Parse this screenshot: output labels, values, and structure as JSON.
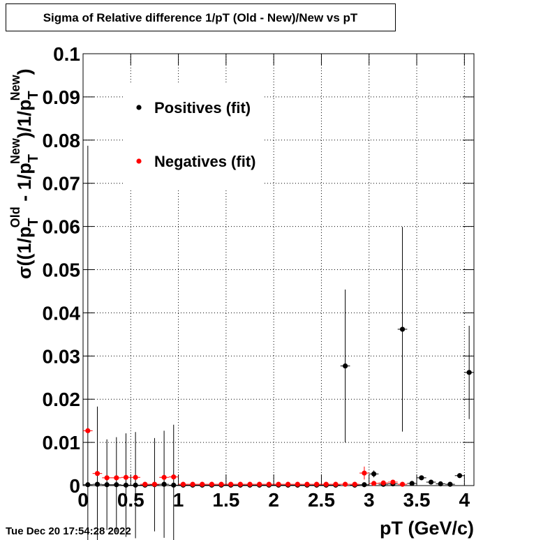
{
  "chart_data": {
    "type": "scatter",
    "title": "Sigma of Relative difference 1/pT (Old - New)/New vs pT",
    "x_label": "pT (GeV/c)",
    "y_label": [
      "σ((1/p",
      "T",
      "Old",
      " - 1/p",
      "T",
      "New",
      ")/1/p",
      "T",
      "New",
      ")"
    ],
    "timestamp": "Tue Dec 20 17:54:28 2022",
    "xlim": [
      0,
      4.1
    ],
    "ylim": [
      0,
      0.1
    ],
    "xticks": [
      0,
      0.5,
      1,
      1.5,
      2,
      2.5,
      3,
      3.5,
      4
    ],
    "yticks": [
      0,
      0.01,
      0.02,
      0.03,
      0.04,
      0.05,
      0.06,
      0.07,
      0.08,
      0.09,
      0.1
    ],
    "grid": true,
    "x": [
      0.05,
      0.15,
      0.25,
      0.35,
      0.45,
      0.55,
      0.65,
      0.75,
      0.85,
      0.95,
      1.05,
      1.15,
      1.25,
      1.35,
      1.45,
      1.55,
      1.65,
      1.75,
      1.85,
      1.95,
      2.05,
      2.15,
      2.25,
      2.35,
      2.45,
      2.55,
      2.65,
      2.75,
      2.85,
      2.95,
      3.05,
      3.15,
      3.25,
      3.35,
      3.45,
      3.55,
      3.65,
      3.75,
      3.85,
      3.95,
      4.05
    ],
    "series": [
      {
        "name": "Positives (fit)",
        "color": "#000000",
        "values": [
          0.0002,
          0.0003,
          0.0002,
          0.0002,
          0.0001,
          0.0001,
          0.0001,
          0.0002,
          0.0003,
          0.0001,
          0.0001,
          0.0001,
          0.0001,
          0.0001,
          0.0001,
          0.0001,
          0.0001,
          0.0001,
          0.0001,
          0.0001,
          0.0001,
          0.0001,
          0.0001,
          0.0001,
          0.0001,
          0.0001,
          0.0001,
          0.0277,
          0.0001,
          0.0002,
          0.0027,
          0.0003,
          0.0004,
          0.0362,
          0.0005,
          0.0018,
          0.0008,
          0.0004,
          0.0003,
          0.0023,
          0.0262
        ],
        "errors": [
          0.0785,
          0.018,
          0.0105,
          0.011,
          0.012,
          0.0123,
          null,
          0.0108,
          0.0124,
          0.014,
          null,
          null,
          null,
          null,
          null,
          null,
          null,
          null,
          null,
          null,
          null,
          null,
          null,
          null,
          null,
          null,
          null,
          0.0177,
          null,
          null,
          0.0008,
          null,
          null,
          0.0237,
          null,
          null,
          null,
          null,
          null,
          null,
          0.0108
        ]
      },
      {
        "name": "Negatives (fit)",
        "color": "#ff0000",
        "values": [
          0.0127,
          0.0028,
          0.0018,
          0.0018,
          0.0019,
          0.0019,
          0.0003,
          0.0003,
          0.0019,
          0.002,
          0.0003,
          0.0003,
          0.0003,
          0.0003,
          0.0003,
          0.0003,
          0.0003,
          0.0003,
          0.0003,
          0.0003,
          0.0003,
          0.0003,
          0.0003,
          0.0003,
          0.0003,
          0.0003,
          0.0003,
          0.0003,
          0.0003,
          0.0029,
          0.0005,
          0.0006,
          0.0008,
          0.0003,
          null,
          null,
          null,
          null,
          null,
          null,
          null
        ],
        "errors": [
          null,
          null,
          null,
          null,
          null,
          null,
          null,
          null,
          null,
          null,
          null,
          null,
          null,
          null,
          null,
          null,
          null,
          null,
          null,
          null,
          null,
          null,
          null,
          null,
          null,
          null,
          null,
          null,
          null,
          0.0015,
          null,
          null,
          null,
          null,
          null,
          null,
          null,
          null,
          null,
          null,
          null
        ]
      }
    ]
  }
}
